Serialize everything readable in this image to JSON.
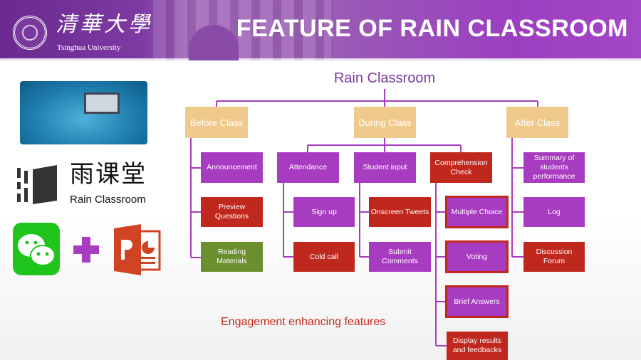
{
  "header": {
    "university_cn": "清華大學",
    "university_en": "Tsinghua University",
    "title": "FEATURE OF RAIN CLASSROOM"
  },
  "left_panel": {
    "logo_cn": "雨课堂",
    "logo_en": "Rain Classroom",
    "plus_color": "#a83cc0",
    "icons": [
      "elearning-illustration",
      "rain-classroom-logo",
      "wechat-icon",
      "powerpoint-icon"
    ]
  },
  "diagram": {
    "root": "Rain Classroom",
    "before": {
      "label": "Before Class",
      "items": [
        "Announcement",
        "Preview Questions",
        "Reading Materials"
      ]
    },
    "during": {
      "label": "During Class",
      "attendance": {
        "label": "Attendance",
        "items": [
          "Sign up",
          "Cold call"
        ]
      },
      "student_input": {
        "label": "Student input",
        "items": [
          "Onscreen Tweets",
          "Submit Comments"
        ]
      },
      "comprehension": {
        "label": "Comprehension Check",
        "items": [
          "Multiple Choice",
          "Voting",
          "Brief Answers",
          "Display results and feedbacks"
        ]
      }
    },
    "after": {
      "label": "After Class",
      "items": [
        "Summary of students performance",
        "Log",
        "Discussion Forum"
      ]
    },
    "caption": "Engagement enhancing features",
    "colors": {
      "purple": "#a83cc0",
      "red": "#c0281e",
      "green": "#6b8e2e",
      "tan": "#f0c98c"
    }
  }
}
